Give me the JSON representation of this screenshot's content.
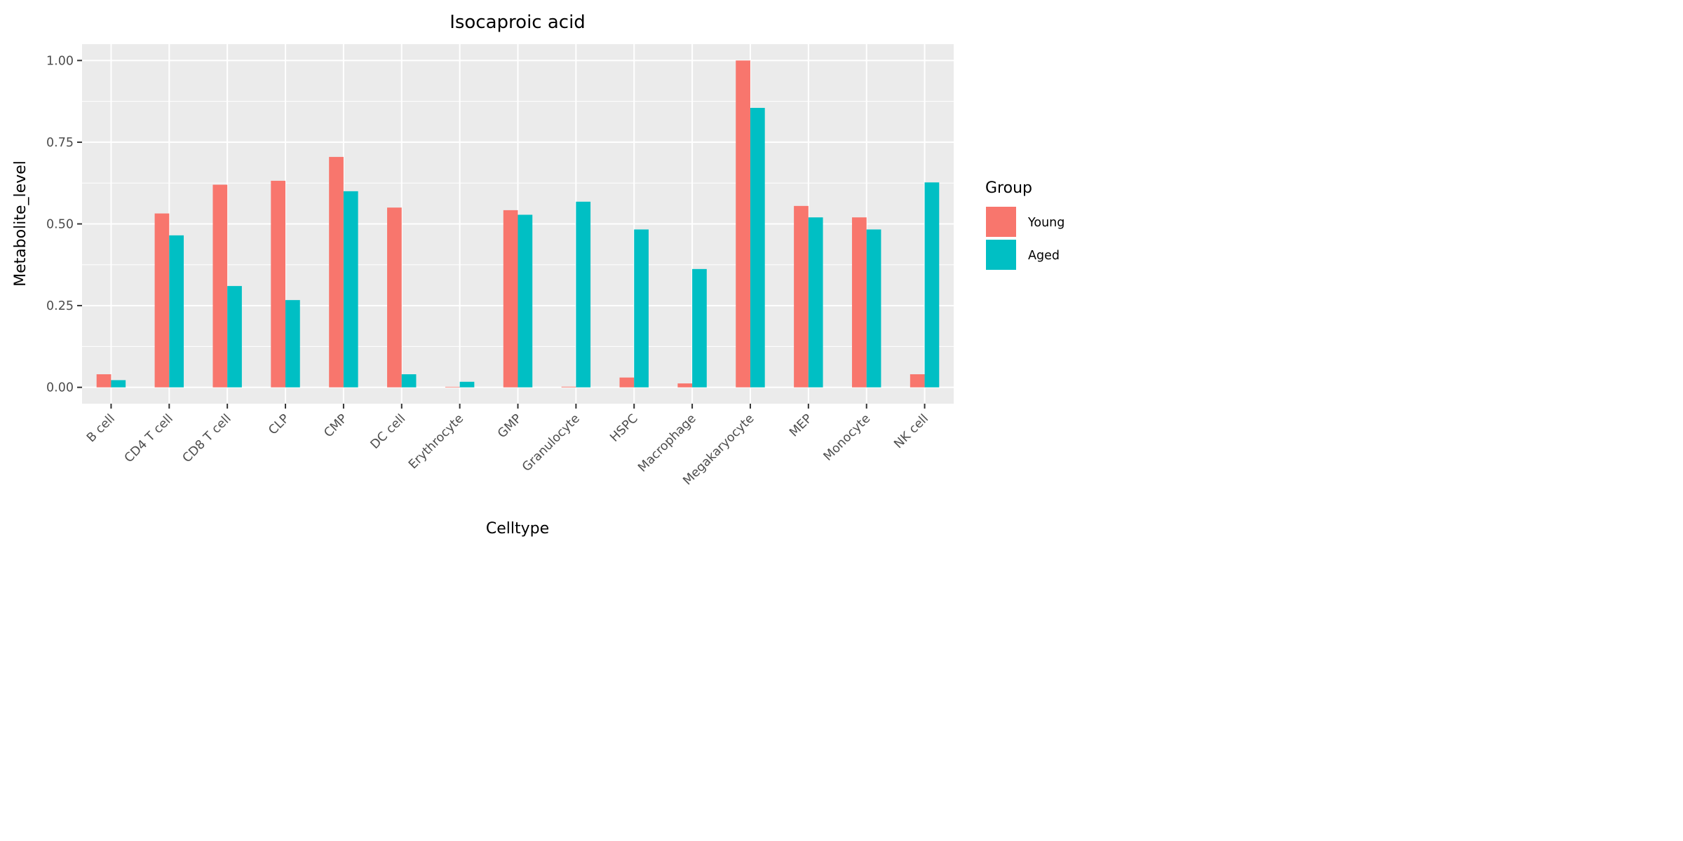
{
  "chart_data": {
    "type": "bar",
    "title": "Isocaproic acid",
    "xlabel": "Celltype",
    "ylabel": "Metabolite_level",
    "ylim": [
      -0.05,
      1.05
    ],
    "yticks": [
      0.0,
      0.25,
      0.5,
      0.75,
      1.0
    ],
    "ytick_labels": [
      "0.00",
      "0.25",
      "0.50",
      "0.75",
      "1.00"
    ],
    "grid": true,
    "legend": {
      "title": "Group",
      "position": "right"
    },
    "categories": [
      "B cell",
      "CD4 T cell",
      "CD8 T cell",
      "CLP",
      "CMP",
      "DC cell",
      "Erythrocyte",
      "GMP",
      "Granulocyte",
      "HSPC",
      "Macrophage",
      "Megakaryocyte",
      "MEP",
      "Monocyte",
      "NK cell"
    ],
    "series": [
      {
        "name": "Young",
        "color": "#F8766D",
        "values": [
          0.04,
          0.532,
          0.62,
          0.632,
          0.705,
          0.55,
          0.0,
          0.542,
          0.002,
          0.03,
          0.012,
          1.0,
          0.555,
          0.52,
          0.04
        ]
      },
      {
        "name": "Aged",
        "color": "#00BFC4",
        "values": [
          0.022,
          0.465,
          0.31,
          0.267,
          0.6,
          0.04,
          0.017,
          0.528,
          0.568,
          0.483,
          0.362,
          0.855,
          0.52,
          0.483,
          0.627
        ]
      }
    ]
  }
}
